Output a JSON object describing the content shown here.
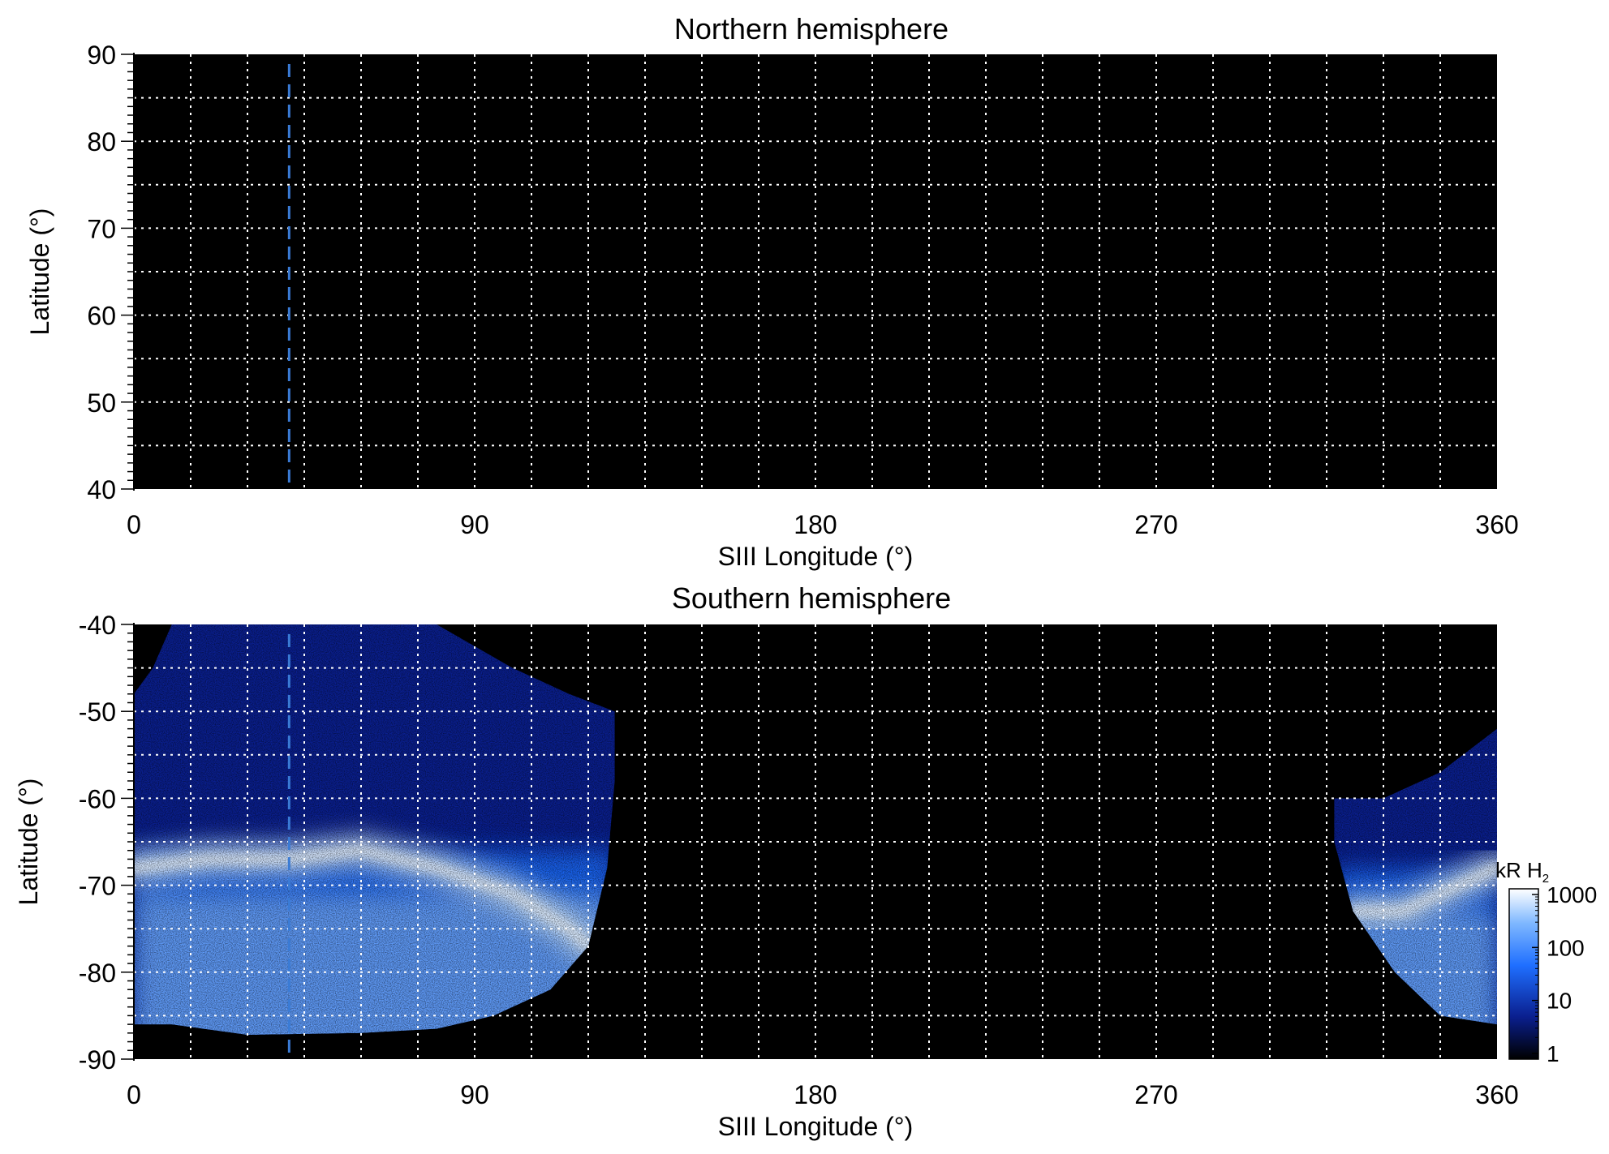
{
  "colors": {
    "background": "#000000",
    "grid": "#ffffff",
    "marker": "#3a7bd5",
    "emission_low": "#0a1f8f",
    "emission_mid": "#1f6fff",
    "emission_high": "#eaf4ff"
  },
  "colorbar": {
    "title": "kR H",
    "subscript": "2",
    "ticks": [
      "1000",
      "100",
      "10",
      "1"
    ],
    "scale": "log",
    "range": [
      1,
      1000
    ]
  },
  "chart_data": [
    {
      "type": "heatmap",
      "title": "Northern hemisphere",
      "xlabel": "SIII Longitude (°)",
      "ylabel": "Latitude (°)",
      "xlim": [
        0,
        360
      ],
      "ylim": [
        40,
        90
      ],
      "xticks": [
        "0",
        "90",
        "180",
        "270",
        "360"
      ],
      "yticks": [
        "90",
        "80",
        "70",
        "60",
        "50",
        "40"
      ],
      "grid": true,
      "grid_spacing_x": 15,
      "grid_spacing_y": 5,
      "marker_longitude": 41,
      "emission_regions": []
    },
    {
      "type": "heatmap",
      "title": "Southern hemisphere",
      "xlabel": "SIII Longitude (°)",
      "ylabel": "Latitude (°)",
      "xlim": [
        0,
        360
      ],
      "ylim": [
        -90,
        -40
      ],
      "xticks": [
        "0",
        "90",
        "180",
        "270",
        "360"
      ],
      "yticks": [
        "-40",
        "-50",
        "-60",
        "-70",
        "-80",
        "-90"
      ],
      "grid": true,
      "grid_spacing_x": 15,
      "grid_spacing_y": 5,
      "marker_longitude": 41,
      "emission_regions": [
        {
          "name": "left",
          "boundary": [
            [
              0,
              -86
            ],
            [
              0,
              -48
            ],
            [
              5,
              -45
            ],
            [
              10,
              -40
            ],
            [
              80,
              -40
            ],
            [
              100,
              -45
            ],
            [
              115,
              -48
            ],
            [
              127,
              -50
            ],
            [
              127,
              -58
            ],
            [
              125,
              -68
            ],
            [
              120,
              -77
            ],
            [
              110,
              -82
            ],
            [
              95,
              -85
            ],
            [
              80,
              -86.5
            ],
            [
              60,
              -87
            ],
            [
              30,
              -87.2
            ],
            [
              10,
              -86
            ],
            [
              0,
              -86
            ]
          ],
          "oval": [
            [
              0,
              -68
            ],
            [
              20,
              -67
            ],
            [
              40,
              -67
            ],
            [
              60,
              -66
            ],
            [
              80,
              -68
            ],
            [
              100,
              -71
            ],
            [
              115,
              -75
            ],
            [
              120,
              -77
            ]
          ],
          "glow_lat": -70,
          "peak": 1000
        },
        {
          "name": "right",
          "boundary": [
            [
              317,
              -60
            ],
            [
              330,
              -60
            ],
            [
              345,
              -57
            ],
            [
              360,
              -52
            ],
            [
              360,
              -86
            ],
            [
              345,
              -85
            ],
            [
              333,
              -80
            ],
            [
              322,
              -73
            ],
            [
              317,
              -65
            ],
            [
              317,
              -60
            ]
          ],
          "oval": [
            [
              322,
              -73
            ],
            [
              335,
              -73
            ],
            [
              350,
              -70
            ],
            [
              360,
              -68
            ]
          ],
          "glow_lat": -72,
          "peak": 1000
        }
      ]
    }
  ]
}
